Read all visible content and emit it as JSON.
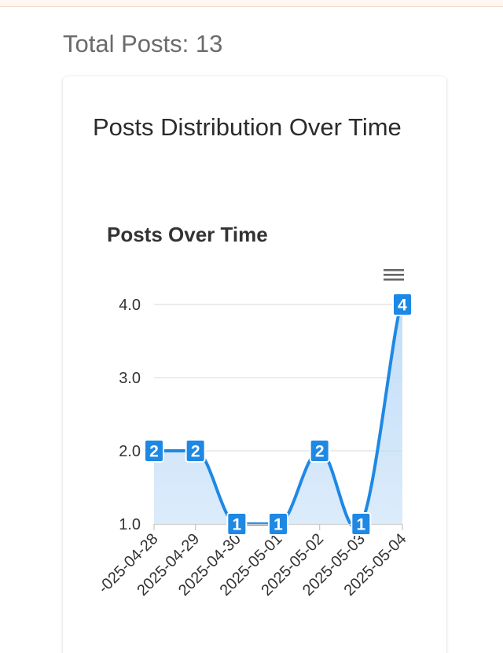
{
  "header": {
    "total_posts": "Total Posts: 13"
  },
  "card": {
    "title": "Posts Distribution Over Time"
  },
  "icons": {
    "menu": "hamburger-menu-icon"
  },
  "colors": {
    "series": "#1e88e5",
    "area": "#bfdcf8",
    "label_bg": "#1e88e5"
  },
  "chart_data": {
    "type": "area",
    "title": "Posts Over Time",
    "xlabel": "",
    "ylabel": "",
    "x": [
      "2025-04-28",
      "2025-04-29",
      "2025-04-30",
      "2025-05-01",
      "2025-05-02",
      "2025-05-03",
      "2025-05-04"
    ],
    "x_tick_labels": [
      "-025-04-28",
      "2025-04-29",
      "2025-04-30",
      "2025-05-01",
      "2025-05-02",
      "2025-05-03",
      "2025-05-04"
    ],
    "series": [
      {
        "values": [
          2,
          2,
          1,
          1,
          2,
          1,
          4
        ]
      }
    ],
    "data_labels": [
      "2",
      "2",
      "1",
      "1",
      "2",
      "1",
      "4"
    ],
    "y_ticks": [
      "1.0",
      "2.0",
      "3.0",
      "4.0"
    ],
    "ylim": [
      1,
      4
    ],
    "grid": true,
    "curve": "smooth"
  }
}
